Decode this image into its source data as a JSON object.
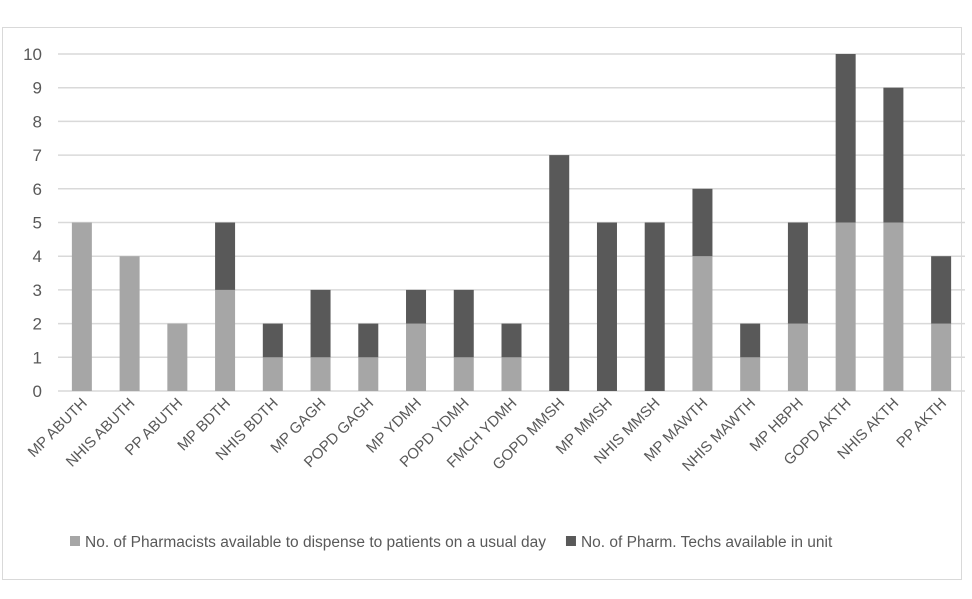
{
  "chart_data": {
    "type": "bar",
    "stacked": true,
    "title": "",
    "xlabel": "",
    "ylabel": "",
    "ylim": [
      0,
      10
    ],
    "yticks": [
      0,
      1,
      2,
      3,
      4,
      5,
      6,
      7,
      8,
      9,
      10
    ],
    "grid": true,
    "legend_position": "bottom",
    "categories": [
      "MP ABUTH",
      "NHIS ABUTH",
      "PP ABUTH",
      "MP BDTH",
      "NHIS BDTH",
      "MP GAGH",
      "POPD GAGH",
      "MP YDMH",
      "POPD YDMH",
      "FMCH YDMH",
      "GOPD MMSH",
      "MP MMSH",
      "NHIS MMSH",
      "MP MAWTH",
      "NHIS MAWTH",
      "MP HBPH",
      "GOPD AKTH",
      "NHIS AKTH",
      "PP AKTH"
    ],
    "series": [
      {
        "name": "No. of Pharmacists available to dispense to patients on a usual day",
        "color": "#a6a6a6",
        "values": [
          5,
          4,
          2,
          3,
          1,
          1,
          1,
          2,
          1,
          1,
          0,
          0,
          0,
          4,
          1,
          2,
          5,
          5,
          2
        ]
      },
      {
        "name": "No. of Pharm. Techs available in unit",
        "color": "#595959",
        "values": [
          0,
          0,
          0,
          2,
          1,
          2,
          1,
          1,
          2,
          1,
          7,
          5,
          5,
          2,
          1,
          3,
          5,
          4,
          2
        ]
      }
    ]
  }
}
